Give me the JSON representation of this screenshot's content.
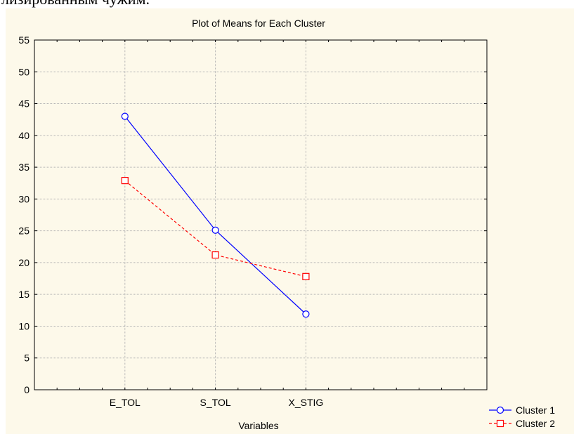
{
  "page_text": {
    "top_fragment": "лизированным чужим."
  },
  "chart_data": {
    "type": "line",
    "title": "Plot of Means for Each Cluster",
    "xlabel": "Variables",
    "ylabel": "",
    "categories": [
      "E_TOL",
      "S_TOL",
      "X_STIG"
    ],
    "y_ticks": [
      "0",
      "5",
      "10",
      "15",
      "20",
      "25",
      "30",
      "35",
      "40",
      "45",
      "50",
      "55"
    ],
    "ylim": [
      0,
      55
    ],
    "grid": true,
    "legend_position": "bottom-right",
    "series": [
      {
        "name": "Cluster 1",
        "values": [
          43.0,
          25.1,
          11.9
        ],
        "color": "#0000ff",
        "line_style": "solid",
        "marker": "circle"
      },
      {
        "name": "Cluster 2",
        "values": [
          32.9,
          21.2,
          17.8
        ],
        "color": "#ff0000",
        "line_style": "dashed",
        "marker": "square"
      }
    ]
  }
}
